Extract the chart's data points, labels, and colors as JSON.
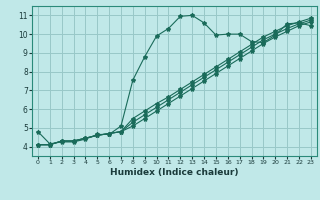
{
  "title": "",
  "xlabel": "Humidex (Indice chaleur)",
  "bg_color": "#c0e8e8",
  "grid_color": "#98c8c8",
  "line_color": "#1a6b5a",
  "xlim": [
    -0.5,
    23.5
  ],
  "ylim": [
    3.5,
    11.5
  ],
  "xticks": [
    0,
    1,
    2,
    3,
    4,
    5,
    6,
    7,
    8,
    9,
    10,
    11,
    12,
    13,
    14,
    15,
    16,
    17,
    18,
    19,
    20,
    21,
    22,
    23
  ],
  "yticks": [
    4,
    5,
    6,
    7,
    8,
    9,
    10,
    11
  ],
  "series1_x": [
    0,
    1,
    2,
    3,
    4,
    5,
    6,
    7,
    8,
    9,
    10,
    11,
    12,
    13,
    14,
    15,
    16,
    17,
    18,
    19,
    20,
    21,
    22,
    23
  ],
  "series1_y": [
    4.8,
    4.15,
    4.25,
    4.25,
    4.4,
    4.65,
    4.65,
    5.1,
    7.55,
    8.8,
    9.9,
    10.3,
    10.95,
    11.0,
    10.6,
    9.95,
    10.0,
    10.0,
    9.6,
    9.55,
    9.95,
    10.55,
    10.6,
    10.45
  ],
  "series2_x": [
    0,
    1,
    2,
    3,
    4,
    5,
    6,
    7,
    8,
    9,
    10,
    11,
    12,
    13,
    14,
    15,
    16,
    17,
    18,
    19,
    20,
    21,
    22,
    23
  ],
  "series2_y": [
    4.1,
    4.1,
    4.3,
    4.3,
    4.45,
    4.6,
    4.7,
    4.8,
    5.3,
    5.7,
    6.1,
    6.5,
    6.9,
    7.3,
    7.7,
    8.1,
    8.5,
    8.9,
    9.3,
    9.7,
    10.0,
    10.3,
    10.55,
    10.75
  ],
  "series3_x": [
    0,
    1,
    2,
    3,
    4,
    5,
    6,
    7,
    8,
    9,
    10,
    11,
    12,
    13,
    14,
    15,
    16,
    17,
    18,
    19,
    20,
    21,
    22,
    23
  ],
  "series3_y": [
    4.1,
    4.1,
    4.3,
    4.3,
    4.45,
    4.6,
    4.7,
    4.8,
    5.5,
    5.9,
    6.3,
    6.65,
    7.05,
    7.45,
    7.85,
    8.25,
    8.65,
    9.05,
    9.45,
    9.85,
    10.15,
    10.45,
    10.65,
    10.85
  ],
  "series4_x": [
    0,
    1,
    2,
    3,
    4,
    5,
    6,
    7,
    8,
    9,
    10,
    11,
    12,
    13,
    14,
    15,
    16,
    17,
    18,
    19,
    20,
    21,
    22,
    23
  ],
  "series4_y": [
    4.1,
    4.1,
    4.3,
    4.3,
    4.45,
    4.6,
    4.7,
    4.8,
    5.1,
    5.5,
    5.9,
    6.3,
    6.7,
    7.1,
    7.5,
    7.9,
    8.3,
    8.7,
    9.1,
    9.5,
    9.85,
    10.15,
    10.45,
    10.65
  ]
}
